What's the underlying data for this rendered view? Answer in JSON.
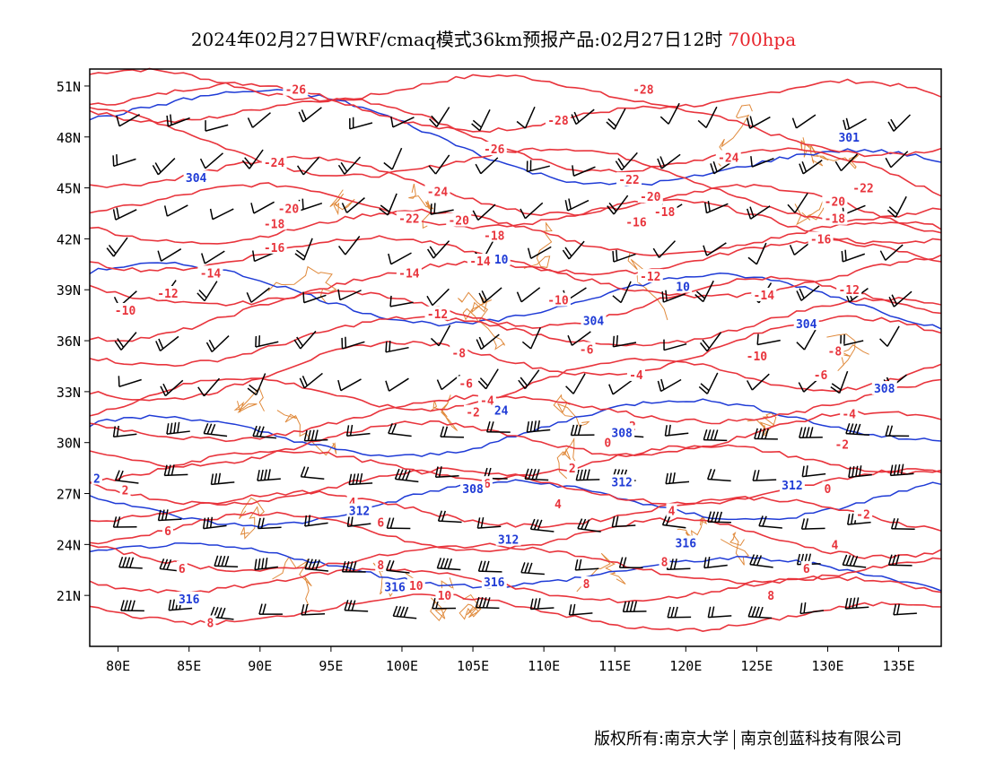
{
  "title": {
    "main": "2024年02月27日WRF/cmaq模式36km预报产品:02月27日12时",
    "level": "700hpa"
  },
  "colors": {
    "temperature_contour": "#e8343c",
    "height_contour": "#1f3bd6",
    "boundary": "#e08a3c",
    "wind_barb": "#000000"
  },
  "axes": {
    "lat_labels": [
      "51N",
      "48N",
      "45N",
      "42N",
      "39N",
      "36N",
      "33N",
      "30N",
      "27N",
      "24N",
      "21N"
    ],
    "lat_values": [
      51,
      48,
      45,
      42,
      39,
      36,
      33,
      30,
      27,
      24,
      21
    ],
    "lon_labels": [
      "80E",
      "85E",
      "90E",
      "95E",
      "100E",
      "105E",
      "110E",
      "115E",
      "120E",
      "125E",
      "130E",
      "135E"
    ],
    "lon_values": [
      80,
      85,
      90,
      95,
      100,
      105,
      110,
      115,
      120,
      125,
      130,
      135
    ],
    "lon_range": [
      78,
      138
    ],
    "lat_range": [
      18,
      52
    ]
  },
  "temperature_labels": [
    {
      "text": "-26",
      "lon": 92.5,
      "lat": 50.8
    },
    {
      "text": "-28",
      "lon": 117.0,
      "lat": 50.8
    },
    {
      "text": "-28",
      "lon": 111.0,
      "lat": 49.0
    },
    {
      "text": "-26",
      "lon": 106.5,
      "lat": 47.3
    },
    {
      "text": "-24",
      "lon": 91.0,
      "lat": 46.5
    },
    {
      "text": "-24",
      "lon": 123.0,
      "lat": 46.8
    },
    {
      "text": "-22",
      "lon": 132.5,
      "lat": 45.0
    },
    {
      "text": "-22",
      "lon": 116.0,
      "lat": 45.5
    },
    {
      "text": "-24",
      "lon": 102.5,
      "lat": 44.8
    },
    {
      "text": "-22",
      "lon": 100.5,
      "lat": 43.2
    },
    {
      "text": "-20",
      "lon": 104.0,
      "lat": 43.1
    },
    {
      "text": "-20",
      "lon": 117.5,
      "lat": 44.5
    },
    {
      "text": "-20",
      "lon": 92.0,
      "lat": 43.8
    },
    {
      "text": "-18",
      "lon": 91.0,
      "lat": 42.9
    },
    {
      "text": "-18",
      "lon": 118.5,
      "lat": 43.6
    },
    {
      "text": "-16",
      "lon": 116.5,
      "lat": 43.0
    },
    {
      "text": "-18",
      "lon": 130.5,
      "lat": 43.2
    },
    {
      "text": "-20",
      "lon": 130.5,
      "lat": 44.2
    },
    {
      "text": "-16",
      "lon": 91.0,
      "lat": 41.5
    },
    {
      "text": "-18",
      "lon": 106.5,
      "lat": 42.2
    },
    {
      "text": "-16",
      "lon": 129.5,
      "lat": 42.0
    },
    {
      "text": "-14",
      "lon": 86.5,
      "lat": 40.0
    },
    {
      "text": "-14",
      "lon": 100.5,
      "lat": 40.0
    },
    {
      "text": "-14",
      "lon": 105.5,
      "lat": 40.7
    },
    {
      "text": "-12",
      "lon": 117.5,
      "lat": 39.8
    },
    {
      "text": "-12",
      "lon": 83.5,
      "lat": 38.8
    },
    {
      "text": "-10",
      "lon": 80.5,
      "lat": 37.8
    },
    {
      "text": "-12",
      "lon": 131.5,
      "lat": 39.0
    },
    {
      "text": "-14",
      "lon": 125.5,
      "lat": 38.7
    },
    {
      "text": "-10",
      "lon": 111.0,
      "lat": 38.4
    },
    {
      "text": "-12",
      "lon": 102.5,
      "lat": 37.6
    },
    {
      "text": "-10",
      "lon": 125.0,
      "lat": 35.1
    },
    {
      "text": "-8",
      "lon": 104.0,
      "lat": 35.3
    },
    {
      "text": "-8",
      "lon": 130.5,
      "lat": 35.4
    },
    {
      "text": "-6",
      "lon": 113.0,
      "lat": 35.5
    },
    {
      "text": "-6",
      "lon": 129.5,
      "lat": 34.0
    },
    {
      "text": "-4",
      "lon": 116.5,
      "lat": 34.0
    },
    {
      "text": "-6",
      "lon": 104.5,
      "lat": 33.5
    },
    {
      "text": "-4",
      "lon": 106.0,
      "lat": 32.5
    },
    {
      "text": "-2",
      "lon": 105.0,
      "lat": 31.8
    },
    {
      "text": "-4",
      "lon": 131.5,
      "lat": 31.7
    },
    {
      "text": "-2",
      "lon": 116.0,
      "lat": 31.0
    },
    {
      "text": "-2",
      "lon": 131.0,
      "lat": 29.9
    },
    {
      "text": "0",
      "lon": 114.5,
      "lat": 30.0
    },
    {
      "text": "2",
      "lon": 112.0,
      "lat": 28.5
    },
    {
      "text": "0",
      "lon": 130.0,
      "lat": 27.3
    },
    {
      "text": "2",
      "lon": 80.5,
      "lat": 27.2
    },
    {
      "text": "6",
      "lon": 106.0,
      "lat": 27.6
    },
    {
      "text": "4",
      "lon": 96.5,
      "lat": 26.5
    },
    {
      "text": "4",
      "lon": 111.0,
      "lat": 26.4
    },
    {
      "text": "4",
      "lon": 119.0,
      "lat": 26.0
    },
    {
      "text": "6",
      "lon": 98.5,
      "lat": 25.3
    },
    {
      "text": "-2",
      "lon": 132.5,
      "lat": 25.8
    },
    {
      "text": "6",
      "lon": 83.5,
      "lat": 24.8
    },
    {
      "text": "4",
      "lon": 130.5,
      "lat": 24.0
    },
    {
      "text": "6",
      "lon": 84.5,
      "lat": 22.6
    },
    {
      "text": "8",
      "lon": 98.5,
      "lat": 22.8
    },
    {
      "text": "8",
      "lon": 118.5,
      "lat": 23.0
    },
    {
      "text": "6",
      "lon": 128.5,
      "lat": 22.6
    },
    {
      "text": "10",
      "lon": 101.0,
      "lat": 21.6
    },
    {
      "text": "10",
      "lon": 103.0,
      "lat": 21.0
    },
    {
      "text": "8",
      "lon": 113.0,
      "lat": 21.7
    },
    {
      "text": "8",
      "lon": 126.0,
      "lat": 21.0
    },
    {
      "text": "8",
      "lon": 86.5,
      "lat": 19.4
    }
  ],
  "height_labels": [
    {
      "text": "304",
      "lon": 85.5,
      "lat": 45.6
    },
    {
      "text": "301",
      "lon": 131.5,
      "lat": 48.0
    },
    {
      "text": "10",
      "lon": 107.0,
      "lat": 40.8
    },
    {
      "text": "10",
      "lon": 119.8,
      "lat": 39.2
    },
    {
      "text": "304",
      "lon": 113.5,
      "lat": 37.2
    },
    {
      "text": "304",
      "lon": 128.5,
      "lat": 37.0
    },
    {
      "text": "308",
      "lon": 134.0,
      "lat": 33.2
    },
    {
      "text": "308",
      "lon": 115.5,
      "lat": 30.6
    },
    {
      "text": "24",
      "lon": 107.0,
      "lat": 31.9
    },
    {
      "text": "308",
      "lon": 105.0,
      "lat": 27.3
    },
    {
      "text": "312",
      "lon": 115.5,
      "lat": 27.7
    },
    {
      "text": "312",
      "lon": 127.5,
      "lat": 27.5
    },
    {
      "text": "312",
      "lon": 97.0,
      "lat": 26.0
    },
    {
      "text": "312",
      "lon": 107.5,
      "lat": 24.3
    },
    {
      "text": "316",
      "lon": 120.0,
      "lat": 24.1
    },
    {
      "text": "316",
      "lon": 85.0,
      "lat": 20.8
    },
    {
      "text": "316",
      "lon": 99.5,
      "lat": 21.5
    },
    {
      "text": "316",
      "lon": 106.5,
      "lat": 21.8
    },
    {
      "text": "2",
      "lon": 78.5,
      "lat": 27.9
    }
  ],
  "footer": {
    "copyright": "版权所有:南京大学",
    "company": "南京创蓝科技有限公司"
  }
}
